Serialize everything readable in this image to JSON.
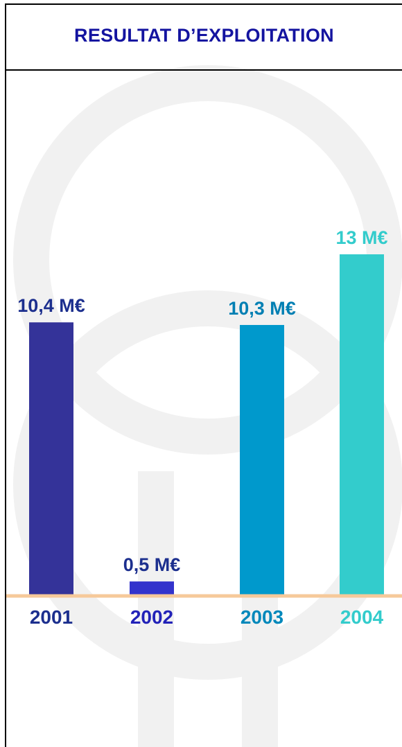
{
  "chart_data": {
    "type": "bar",
    "title": "RESULTAT D’EXPLOITATION",
    "categories": [
      "2001",
      "2002",
      "2003",
      "2004"
    ],
    "values": [
      10.4,
      0.5,
      10.3,
      13
    ],
    "value_labels": [
      "10,4 M€",
      "0,5 M€",
      "10,3 M€",
      "13 M€"
    ],
    "colors": [
      "#343399",
      "#3333cc",
      "#0099cc",
      "#33cccc"
    ],
    "label_colors": [
      "#1c2f8e",
      "#1c2f8e",
      "#007fb3",
      "#33cccc"
    ],
    "tick_colors": [
      "#1c2f8e",
      "#2222b8",
      "#0088bb",
      "#33cccc"
    ],
    "baseline_color": "#f6c99a",
    "ylim": [
      0,
      13
    ],
    "grid": false,
    "legend": "none"
  }
}
